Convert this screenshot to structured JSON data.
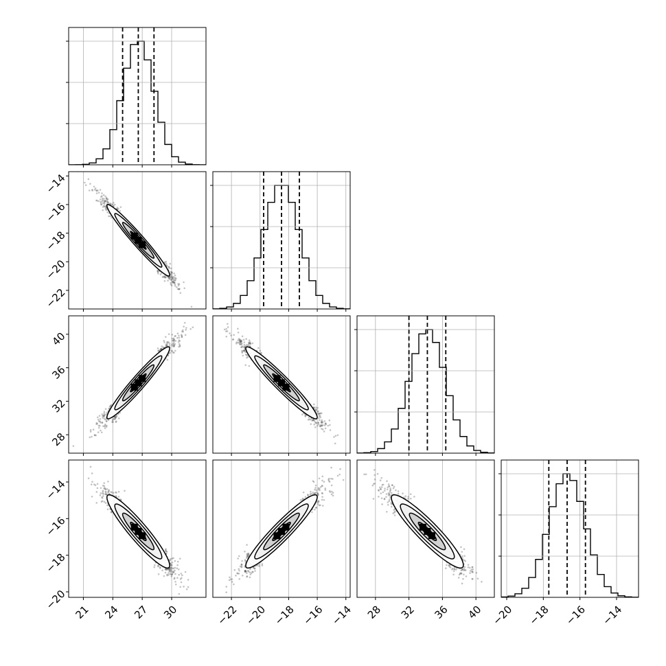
{
  "chart_data": {
    "type": "corner",
    "parameters": [
      {
        "id": "p0",
        "range": [
          19.5,
          33.5
        ],
        "ticks": [
          21,
          24,
          27,
          30
        ],
        "tick_labels": [
          "21",
          "24",
          "27",
          "30"
        ],
        "mean": 26.6,
        "sd": 1.6,
        "quantiles": [
          25.0,
          26.6,
          28.2
        ]
      },
      {
        "id": "p1",
        "range": [
          -23.3,
          -13.7
        ],
        "ticks": [
          -22,
          -20,
          -18,
          -16,
          -14
        ],
        "tick_labels": [
          "−22",
          "−20",
          "−18",
          "−16",
          "−14"
        ],
        "mean": -18.5,
        "sd": 1.25,
        "quantiles": [
          -19.75,
          -18.5,
          -17.25
        ]
      },
      {
        "id": "p2",
        "range": [
          25.8,
          42.2
        ],
        "ticks": [
          28,
          32,
          36,
          40
        ],
        "tick_labels": [
          "28",
          "32",
          "36",
          "40"
        ],
        "mean": 34.2,
        "sd": 2.15,
        "quantiles": [
          32.0,
          34.2,
          36.4
        ]
      },
      {
        "id": "p3",
        "range": [
          -20.3,
          -12.8
        ],
        "ticks": [
          -20,
          -18,
          -16,
          -14
        ],
        "tick_labels": [
          "−20",
          "−18",
          "−16",
          "−14"
        ],
        "mean": -16.7,
        "sd": 1.0,
        "quantiles": [
          -17.7,
          -16.7,
          -15.7
        ]
      }
    ],
    "correlations": [
      [
        1.0,
        -0.97,
        0.96,
        -0.93
      ],
      [
        -0.97,
        1.0,
        -0.96,
        0.94
      ],
      [
        0.96,
        -0.96,
        1.0,
        -0.92
      ],
      [
        -0.93,
        0.94,
        -0.92,
        1.0
      ]
    ],
    "contour_levels_sigma": [
      0.5,
      1.0,
      1.5,
      2.0
    ],
    "histogram_bins": 20,
    "grid": true,
    "quantile_line_style": "dashed",
    "colors": {
      "lines": "#000000",
      "points": "#555555",
      "grid": "#b0b0b0"
    }
  }
}
